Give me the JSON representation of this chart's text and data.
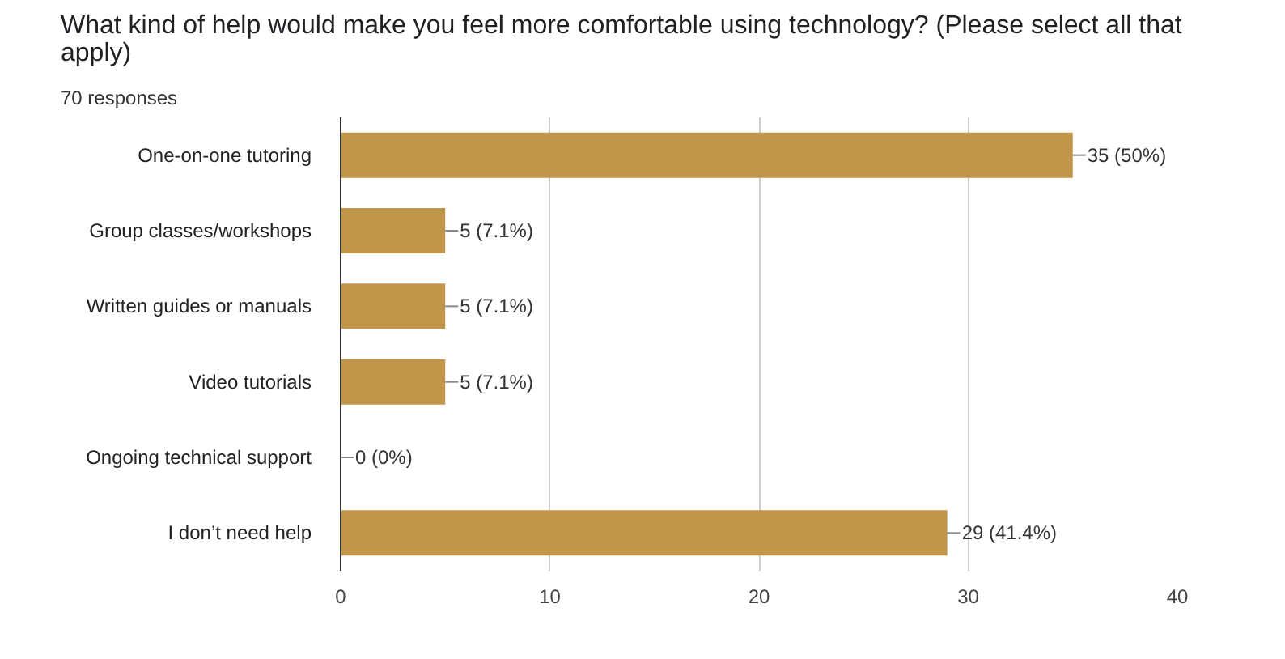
{
  "chart_data": {
    "type": "bar",
    "orientation": "horizontal",
    "title": "What kind of help would make you feel more comfortable using technology? (Please select all that apply)",
    "subtitle": "70 responses",
    "categories": [
      "One-on-one tutoring",
      "Group classes/workshops",
      "Written guides or manuals",
      "Video tutorials",
      "Ongoing technical support",
      "I don’t need help"
    ],
    "values": [
      35,
      5,
      5,
      5,
      0,
      29
    ],
    "value_labels": [
      "35 (50%)",
      "5 (7.1%)",
      "5 (7.1%)",
      "5 (7.1%)",
      "0 (0%)",
      "29 (41.4%)"
    ],
    "color": "#c0964b",
    "xlim": [
      0,
      40
    ],
    "xticks": [
      0,
      10,
      20,
      30,
      40
    ],
    "grid": "x"
  }
}
